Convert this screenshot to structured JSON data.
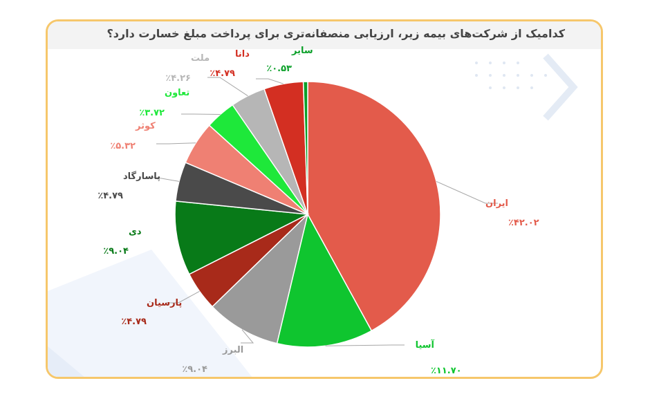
{
  "chart_data": {
    "type": "pie",
    "title": "کدامیک از شرکت‌های بیمه زیر، ارزیابی منصفانه‌تری برای پرداخت مبلغ خسارت دارد؟",
    "slices": [
      {
        "label": "ایران",
        "value_text": "٪۴۲.۰۲",
        "value": 42.02,
        "color": "#e35b4b"
      },
      {
        "label": "آسیا",
        "value_text": "٪۱۱.۷۰",
        "value": 11.7,
        "color": "#0fc52f"
      },
      {
        "label": "البرز",
        "value_text": "٪۹.۰۴",
        "value": 9.04,
        "color": "#9a9a9a"
      },
      {
        "label": "پارسیان",
        "value_text": "٪۴.۷۹",
        "value": 4.79,
        "color": "#a82a1a"
      },
      {
        "label": "دی",
        "value_text": "٪۹.۰۴",
        "value": 9.04,
        "color": "#087a18"
      },
      {
        "label": "پاسارگاد",
        "value_text": "٪۴.۷۹",
        "value": 4.79,
        "color": "#4a4a4a"
      },
      {
        "label": "کوثر",
        "value_text": "٪۵.۳۲",
        "value": 5.32,
        "color": "#ef8073"
      },
      {
        "label": "تعاون",
        "value_text": "٪۳.۷۲",
        "value": 3.72,
        "color": "#1ee83a"
      },
      {
        "label": "ملت",
        "value_text": "٪۴.۲۶",
        "value": 4.26,
        "color": "#b6b6b6"
      },
      {
        "label": "دانا",
        "value_text": "٪۴.۷۹",
        "value": 4.79,
        "color": "#d32f22"
      },
      {
        "label": "سایر",
        "value_text": "٪۰.۵۳",
        "value": 0.53,
        "color": "#0ca02a"
      }
    ]
  }
}
